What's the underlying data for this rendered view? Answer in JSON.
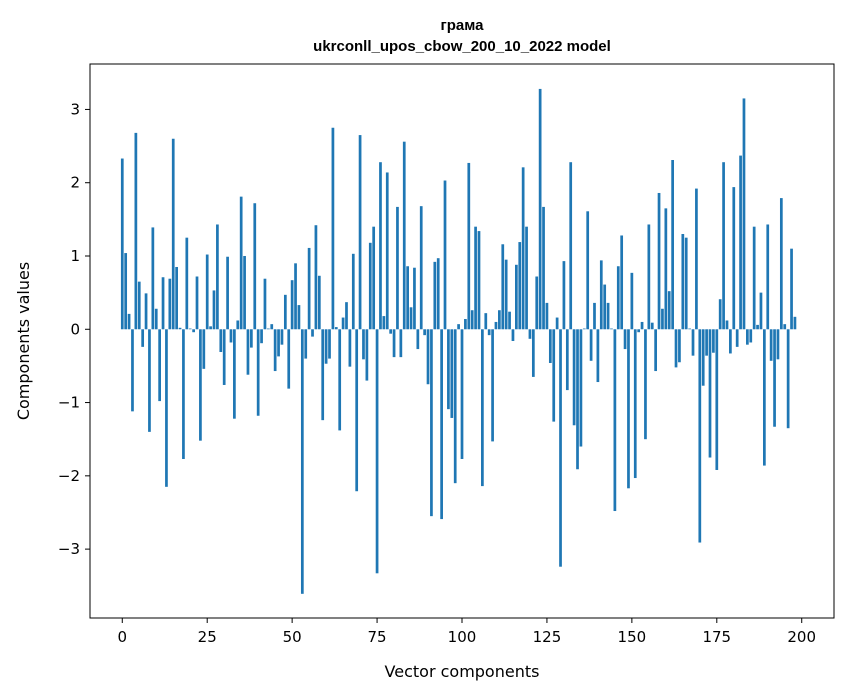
{
  "chart_data": {
    "type": "bar",
    "title": "грама",
    "subtitle": "ukrconll_upos_cbow_200_10_2022 model",
    "xlabel": "Vector components",
    "ylabel": "Components values",
    "xlim": [
      -9.5,
      209.5
    ],
    "ylim": [
      -3.94,
      3.62
    ],
    "xticks": [
      0,
      25,
      50,
      75,
      100,
      125,
      150,
      175,
      200
    ],
    "yticks": [
      -3,
      -2,
      -1,
      0,
      1,
      2,
      3
    ],
    "xtick_labels": [
      "0",
      "25",
      "50",
      "75",
      "100",
      "125",
      "150",
      "175",
      "200"
    ],
    "ytick_labels": [
      "−3",
      "−2",
      "−1",
      "0",
      "1",
      "2",
      "3"
    ],
    "bar_color": "#1f77b4",
    "grid": false,
    "values": [
      2.33,
      1.04,
      0.21,
      -1.12,
      2.68,
      0.65,
      -0.24,
      0.49,
      -1.4,
      1.39,
      0.28,
      -0.98,
      0.71,
      -2.15,
      0.69,
      2.6,
      0.85,
      0.02,
      -1.77,
      1.25,
      0.01,
      -0.04,
      0.72,
      -1.52,
      -0.54,
      1.02,
      0.04,
      0.53,
      1.43,
      -0.31,
      -0.76,
      0.99,
      -0.18,
      -1.22,
      0.12,
      1.81,
      1.0,
      -0.62,
      -0.25,
      1.72,
      -1.18,
      -0.19,
      0.69,
      0.01,
      0.07,
      -0.57,
      -0.37,
      -0.21,
      0.47,
      -0.81,
      0.67,
      0.9,
      0.33,
      -3.61,
      -0.4,
      1.11,
      -0.1,
      1.42,
      0.73,
      -1.24,
      -0.47,
      -0.4,
      2.75,
      0.03,
      -1.38,
      0.16,
      0.37,
      -0.51,
      1.03,
      -2.21,
      2.65,
      -0.41,
      -0.7,
      1.18,
      1.4,
      -3.33,
      2.28,
      0.18,
      2.14,
      -0.06,
      -0.38,
      1.67,
      -0.38,
      2.56,
      0.86,
      0.3,
      0.84,
      -0.27,
      1.68,
      -0.08,
      -0.75,
      -2.55,
      0.92,
      0.97,
      -2.59,
      2.03,
      -1.09,
      -1.21,
      -2.1,
      0.07,
      -1.77,
      0.14,
      2.27,
      0.26,
      1.4,
      1.34,
      -2.14,
      0.22,
      -0.08,
      -1.53,
      0.1,
      0.26,
      1.16,
      0.95,
      0.24,
      -0.16,
      0.88,
      1.19,
      2.21,
      1.4,
      -0.13,
      -0.65,
      0.72,
      3.28,
      1.67,
      0.36,
      -0.46,
      -1.26,
      0.16,
      -3.24,
      0.93,
      -0.83,
      2.28,
      -1.31,
      -1.91,
      -1.6,
      0.01,
      1.61,
      -0.43,
      0.36,
      -0.72,
      0.94,
      0.61,
      0.36,
      0.01,
      -2.48,
      0.86,
      1.28,
      -0.27,
      -2.17,
      0.77,
      -2.03,
      -0.04,
      0.1,
      -1.5,
      1.43,
      0.09,
      -0.57,
      1.86,
      0.28,
      1.65,
      0.52,
      2.31,
      -0.52,
      -0.45,
      1.3,
      1.25,
      0.01,
      -0.36,
      1.92,
      -2.91,
      -0.77,
      -0.36,
      -1.75,
      -0.32,
      -1.92,
      0.41,
      2.28,
      0.12,
      -0.33,
      1.94,
      -0.24,
      2.37,
      3.15,
      -0.21,
      -0.18,
      1.4,
      0.06,
      0.5,
      -1.86,
      1.43,
      -0.43,
      -1.33,
      -0.41,
      1.79,
      0.07,
      -1.35,
      1.1,
      0.17
    ]
  }
}
